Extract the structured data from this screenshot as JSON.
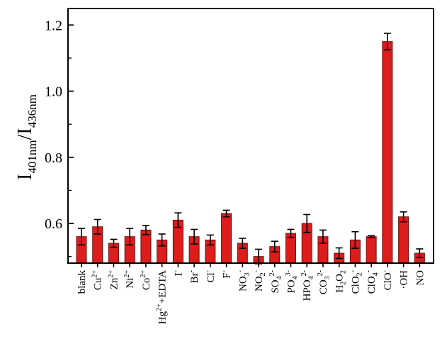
{
  "chart_data": {
    "type": "bar",
    "ylabel": {
      "parts": [
        {
          "t": "I",
          "s": "n"
        },
        {
          "t": "401nm",
          "s": "sub"
        },
        {
          "t": "/I",
          "s": "n"
        },
        {
          "t": "436nm",
          "s": "sub"
        }
      ]
    },
    "ylim": [
      0.48,
      1.25
    ],
    "yticks": [
      0.6,
      0.8,
      1.0,
      1.2
    ],
    "ytick_labels": [
      "0.6",
      "0.8",
      "1.0",
      "1.2"
    ],
    "grid": false,
    "bar_color": "#dd1c1c",
    "bar_edge_color": "#7a0b0b",
    "categories": [
      {
        "name": "blank",
        "parts": [
          {
            "t": "blank",
            "s": "n"
          }
        ]
      },
      {
        "name": "Cu2+",
        "parts": [
          {
            "t": "Cu",
            "s": "n"
          },
          {
            "t": "2+",
            "s": "sup"
          }
        ]
      },
      {
        "name": "Zn2+",
        "parts": [
          {
            "t": "Zn",
            "s": "n"
          },
          {
            "t": "2+",
            "s": "sup"
          }
        ]
      },
      {
        "name": "Ni2+",
        "parts": [
          {
            "t": "Ni",
            "s": "n"
          },
          {
            "t": "2+",
            "s": "sup"
          }
        ]
      },
      {
        "name": "Co2+",
        "parts": [
          {
            "t": "Co",
            "s": "n"
          },
          {
            "t": "2+",
            "s": "sup"
          }
        ]
      },
      {
        "name": "Hg2++EDTA",
        "small": true,
        "parts": [
          {
            "t": "Hg",
            "s": "n"
          },
          {
            "t": "2+",
            "s": "sup"
          },
          {
            "t": "+EDTA",
            "s": "n"
          }
        ]
      },
      {
        "name": "I-",
        "parts": [
          {
            "t": "I",
            "s": "n"
          },
          {
            "t": "-",
            "s": "sup"
          }
        ]
      },
      {
        "name": "Br-",
        "parts": [
          {
            "t": "Br",
            "s": "n"
          },
          {
            "t": "-",
            "s": "sup"
          }
        ]
      },
      {
        "name": "Cl-",
        "parts": [
          {
            "t": "Cl",
            "s": "n"
          },
          {
            "t": "-",
            "s": "sup"
          }
        ]
      },
      {
        "name": "F-",
        "parts": [
          {
            "t": "F",
            "s": "n"
          },
          {
            "t": "-",
            "s": "sup"
          }
        ]
      },
      {
        "name": "NO3-",
        "parts": [
          {
            "t": "NO",
            "s": "n"
          },
          {
            "t": "3",
            "s": "sub"
          },
          {
            "t": "-",
            "s": "sup"
          }
        ]
      },
      {
        "name": "NO2-",
        "parts": [
          {
            "t": "NO",
            "s": "n"
          },
          {
            "t": "2",
            "s": "sub"
          },
          {
            "t": "-",
            "s": "sup"
          }
        ]
      },
      {
        "name": "SO42-",
        "parts": [
          {
            "t": "SO",
            "s": "n"
          },
          {
            "t": "4",
            "s": "sub"
          },
          {
            "t": "2-",
            "s": "sup"
          }
        ]
      },
      {
        "name": "PO43-",
        "parts": [
          {
            "t": "PO",
            "s": "n"
          },
          {
            "t": "4",
            "s": "sub"
          },
          {
            "t": "3-",
            "s": "sup"
          }
        ]
      },
      {
        "name": "HPO42-",
        "parts": [
          {
            "t": "HPO",
            "s": "n"
          },
          {
            "t": "4",
            "s": "sub"
          },
          {
            "t": "2-",
            "s": "sup"
          }
        ]
      },
      {
        "name": "CO32-",
        "parts": [
          {
            "t": "CO",
            "s": "n"
          },
          {
            "t": "3",
            "s": "sub"
          },
          {
            "t": "2-",
            "s": "sup"
          }
        ]
      },
      {
        "name": "H2O2",
        "parts": [
          {
            "t": "H",
            "s": "n"
          },
          {
            "t": "2",
            "s": "sub"
          },
          {
            "t": "O",
            "s": "n"
          },
          {
            "t": "2",
            "s": "sub"
          }
        ]
      },
      {
        "name": "ClO2-",
        "parts": [
          {
            "t": "ClO",
            "s": "n"
          },
          {
            "t": "2",
            "s": "sub"
          },
          {
            "t": "-",
            "s": "sup"
          }
        ]
      },
      {
        "name": "ClO4-",
        "parts": [
          {
            "t": "ClO",
            "s": "n"
          },
          {
            "t": "4",
            "s": "sub"
          },
          {
            "t": "-",
            "s": "sup"
          }
        ]
      },
      {
        "name": "ClO-",
        "parts": [
          {
            "t": "ClO",
            "s": "n"
          },
          {
            "t": "-",
            "s": "sup"
          }
        ]
      },
      {
        "name": "·OH",
        "parts": [
          {
            "t": "·OH",
            "s": "n"
          }
        ]
      },
      {
        "name": "NO",
        "parts": [
          {
            "t": "NO",
            "s": "n"
          }
        ]
      }
    ],
    "values": [
      0.56,
      0.59,
      0.54,
      0.56,
      0.58,
      0.55,
      0.61,
      0.56,
      0.55,
      0.63,
      0.54,
      0.5,
      0.53,
      0.57,
      0.6,
      0.56,
      0.51,
      0.55,
      0.56,
      1.15,
      0.62,
      0.51
    ],
    "errors": [
      0.025,
      0.022,
      0.012,
      0.025,
      0.014,
      0.018,
      0.022,
      0.022,
      0.015,
      0.01,
      0.015,
      0.022,
      0.016,
      0.012,
      0.027,
      0.02,
      0.016,
      0.025,
      0.003,
      0.025,
      0.015,
      0.013
    ]
  }
}
